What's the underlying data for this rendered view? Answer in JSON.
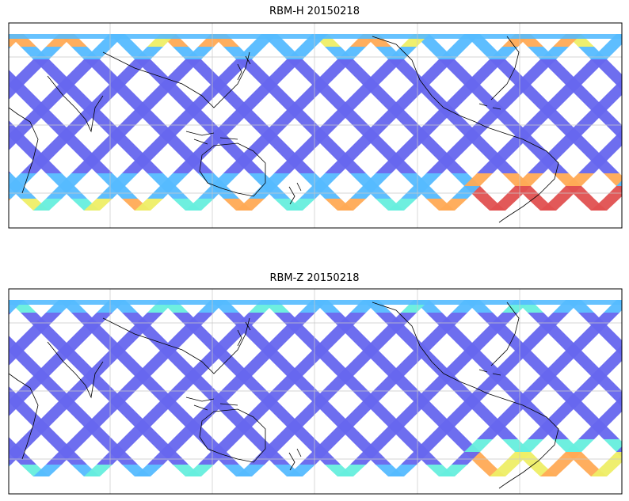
{
  "panels": [
    {
      "title": "RBM-H 20150218",
      "extent": {
        "lon": [
          0,
          360
        ],
        "lat": [
          -90,
          90
        ]
      },
      "gridlines": true,
      "hot_regions": [
        "north-band",
        "south-band",
        "south-atlantic-anomaly"
      ]
    },
    {
      "title": "RBM-Z 20150218",
      "extent": {
        "lon": [
          0,
          360
        ],
        "lat": [
          -90,
          90
        ]
      },
      "gridlines": true,
      "hot_regions": [
        "south-band",
        "south-atlantic-anomaly"
      ]
    }
  ],
  "colors": {
    "low": "#6666ee",
    "mid": "#55bbff",
    "cyan": "#66eedd",
    "yellow": "#eeee66",
    "orange": "#ffaa55",
    "high": "#e05050",
    "coast": "#000000",
    "grid": "#c8c8c8"
  }
}
